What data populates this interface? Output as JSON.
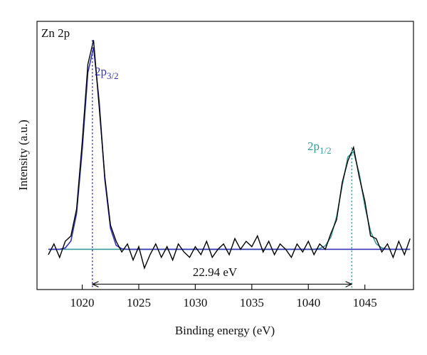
{
  "chart_data": {
    "type": "line",
    "title": "Zn 2p",
    "x_label": "Binding energy (eV)",
    "y_label": "Intensity (a.u.)",
    "xlim": [
      1016,
      1049.3
    ],
    "ylim": [
      0,
      100
    ],
    "xticks": [
      1020,
      1025,
      1030,
      1035,
      1040,
      1045
    ],
    "x": [
      1017,
      1017.5,
      1018,
      1018.5,
      1019,
      1019.5,
      1020,
      1020.5,
      1021,
      1021.5,
      1022,
      1022.5,
      1023,
      1023.5,
      1024,
      1024.5,
      1025,
      1025.5,
      1026,
      1026.5,
      1027,
      1027.5,
      1028,
      1028.5,
      1029,
      1029.5,
      1030,
      1030.5,
      1031,
      1031.5,
      1032,
      1032.5,
      1033,
      1033.5,
      1034,
      1034.5,
      1035,
      1035.5,
      1036,
      1036.5,
      1037,
      1037.5,
      1038,
      1038.5,
      1039,
      1039.5,
      1040,
      1040.5,
      1041,
      1041.5,
      1042,
      1042.5,
      1043,
      1043.5,
      1044,
      1044.5,
      1045,
      1045.5,
      1046,
      1046.5,
      1047,
      1047.5,
      1048,
      1048.5,
      1049
    ],
    "series": [
      {
        "color": "#3a9a9a",
        "values": [
          15,
          15,
          15,
          15,
          15,
          15,
          15,
          15,
          15,
          15,
          15,
          15,
          15,
          15,
          15,
          15,
          15,
          15,
          15,
          15,
          15,
          15,
          15,
          15,
          15,
          15,
          15,
          15,
          15,
          15,
          15,
          15,
          15,
          15,
          15,
          15,
          15,
          15,
          15,
          15,
          15,
          15,
          15,
          15,
          15,
          15,
          15,
          15,
          15.3,
          16.3,
          19.6,
          27.2,
          38.9,
          49.5,
          51.4,
          43.3,
          31.1,
          21.7,
          17.1,
          15.5,
          15.1,
          15,
          15,
          15,
          15
        ]
      },
      {
        "color": "#3535b5",
        "values": [
          15,
          15,
          15,
          15.5,
          18.1,
          28.3,
          52,
          80.9,
          90.3,
          70.2,
          40.9,
          22.8,
          16.5,
          15.2,
          15,
          15,
          15,
          15,
          15,
          15,
          15,
          15,
          15,
          15,
          15,
          15,
          15,
          15,
          15,
          15,
          15,
          15,
          15,
          15,
          15,
          15,
          15,
          15,
          15,
          15,
          15,
          15,
          15,
          15,
          15,
          15,
          15,
          15,
          15,
          15,
          15,
          15,
          15,
          15,
          15,
          15,
          15,
          15,
          15,
          15,
          15,
          15,
          15,
          15,
          15
        ]
      },
      {
        "color": "#000000",
        "values": [
          13,
          17,
          12,
          18,
          20,
          30,
          55,
          84,
          93,
          68,
          42,
          24,
          18,
          14,
          17,
          11,
          16,
          8,
          13,
          17,
          12,
          16,
          11,
          17,
          14,
          12,
          16,
          13,
          18,
          12,
          15,
          17,
          13,
          19,
          15,
          18,
          16,
          20,
          14,
          18,
          13,
          17,
          15,
          12,
          17,
          14,
          18,
          13,
          17,
          15,
          21,
          26,
          40,
          48,
          53,
          42,
          33,
          20,
          19,
          14,
          17,
          12,
          18,
          13,
          19
        ]
      }
    ],
    "markers": [
      {
        "x": 1020.9,
        "top": 93,
        "color": "#3535b5",
        "main": "2p",
        "sub": "3/2"
      },
      {
        "x": 1043.84,
        "top": 53,
        "color": "#3a9a9a",
        "main": "2p",
        "sub": "1/2"
      }
    ],
    "arrow_y": 2,
    "arrow_label": "22.94 eV"
  }
}
